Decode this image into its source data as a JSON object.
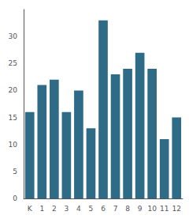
{
  "chart_data": {
    "type": "bar",
    "categories": [
      "K",
      "1",
      "2",
      "3",
      "4",
      "5",
      "6",
      "7",
      "8",
      "9",
      "10",
      "11",
      "12"
    ],
    "values": [
      16,
      21,
      22,
      16,
      20,
      13,
      33,
      23,
      24,
      27,
      24,
      11,
      15
    ],
    "color": "#2e6b87",
    "ylim": [
      0,
      35
    ],
    "yticks": [
      0,
      5,
      10,
      15,
      20,
      25,
      30
    ],
    "grid": false
  }
}
